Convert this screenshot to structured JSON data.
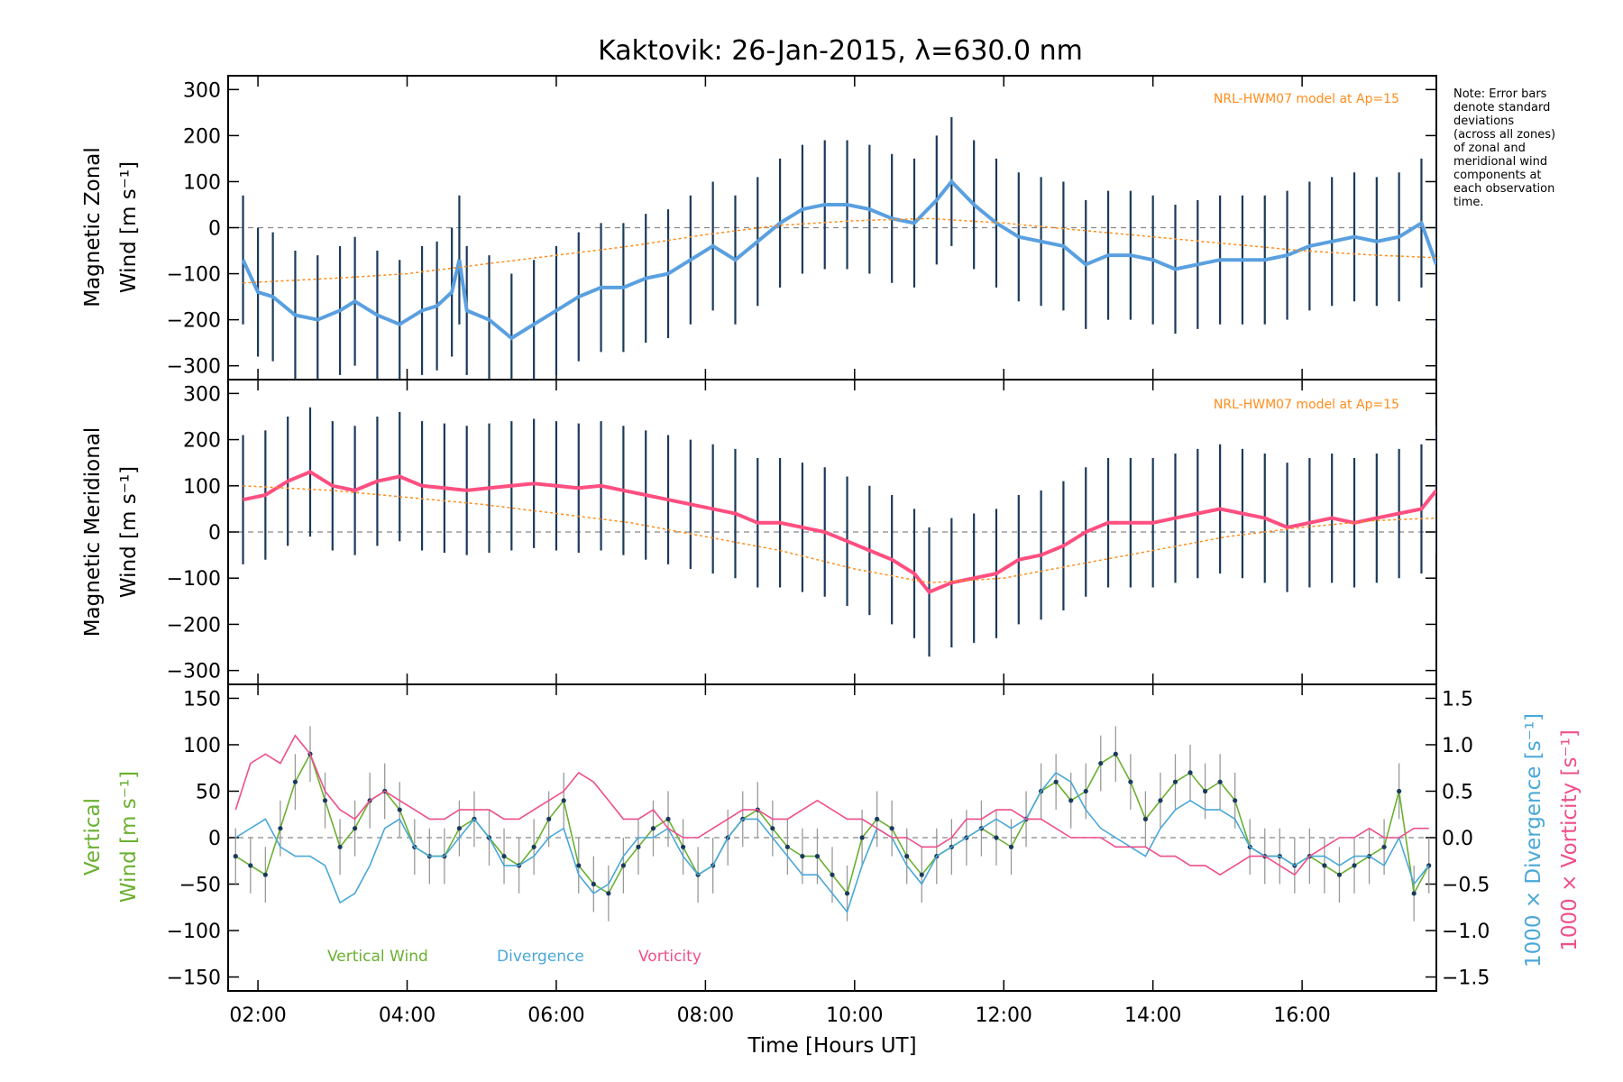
{
  "chart_data": [
    {
      "type": "line",
      "title": "Kaktovik: 26-Jan-2015, λ=630.0 nm",
      "ylabel_line1": "Magnetic Zonal",
      "ylabel_line2": "Wind [m s⁻¹]",
      "model_label": "NRL-HWM07 model at Ap=15",
      "note": [
        "Note: Error bars",
        "denote standard",
        "deviations",
        "(across all zones)",
        "of zonal and",
        "meridional wind",
        "components at",
        "each observation",
        "time."
      ],
      "xlim": [
        1.6,
        17.8
      ],
      "ylim": [
        -330,
        330
      ],
      "yticks": [
        "300",
        "200",
        "100",
        "0",
        "−100",
        "−200",
        "−300"
      ],
      "series": [
        {
          "color": "#5aa0e0",
          "x": [
            1.8,
            2.0,
            2.2,
            2.5,
            2.8,
            3.1,
            3.3,
            3.6,
            3.9,
            4.2,
            4.4,
            4.6,
            4.7,
            4.8,
            5.1,
            5.4,
            5.7,
            6.0,
            6.3,
            6.6,
            6.9,
            7.2,
            7.5,
            7.8,
            8.1,
            8.4,
            8.7,
            9.0,
            9.3,
            9.6,
            9.9,
            10.2,
            10.5,
            10.8,
            11.1,
            11.3,
            11.6,
            11.9,
            12.2,
            12.5,
            12.8,
            13.1,
            13.4,
            13.7,
            14.0,
            14.3,
            14.6,
            14.9,
            15.2,
            15.5,
            15.8,
            16.1,
            16.4,
            16.7,
            17.0,
            17.3,
            17.6,
            17.8
          ],
          "y": [
            -70,
            -140,
            -150,
            -190,
            -200,
            -180,
            -160,
            -190,
            -210,
            -180,
            -170,
            -140,
            -70,
            -180,
            -200,
            -240,
            -210,
            -180,
            -150,
            -130,
            -130,
            -110,
            -100,
            -70,
            -40,
            -70,
            -30,
            10,
            40,
            50,
            50,
            40,
            20,
            10,
            60,
            100,
            50,
            10,
            -20,
            -30,
            -40,
            -80,
            -60,
            -60,
            -70,
            -90,
            -80,
            -70,
            -70,
            -70,
            -60,
            -40,
            -30,
            -20,
            -30,
            -20,
            10,
            -80
          ]
        },
        {
          "color": "#ff8c1a",
          "x": [
            1.8,
            3.0,
            4.0,
            5.0,
            6.0,
            7.0,
            8.0,
            9.0,
            10.0,
            11.0,
            12.0,
            13.0,
            14.0,
            15.0,
            16.0,
            17.0,
            17.8
          ],
          "y": [
            -120,
            -110,
            -100,
            -80,
            -60,
            -40,
            -15,
            5,
            15,
            20,
            10,
            -5,
            -20,
            -35,
            -50,
            -60,
            -65
          ]
        }
      ]
    },
    {
      "type": "line",
      "ylabel_line1": "Magnetic Meridional",
      "ylabel_line2": "Wind [m s⁻¹]",
      "model_label": "NRL-HWM07 model at Ap=15",
      "xlim": [
        1.6,
        17.8
      ],
      "ylim": [
        -330,
        330
      ],
      "yticks": [
        "300",
        "200",
        "100",
        "0",
        "−100",
        "−200",
        "−300"
      ],
      "series": [
        {
          "color": "#ff4f80",
          "x": [
            1.8,
            2.1,
            2.4,
            2.7,
            3.0,
            3.3,
            3.6,
            3.9,
            4.2,
            4.5,
            4.8,
            5.1,
            5.4,
            5.7,
            6.0,
            6.3,
            6.6,
            6.9,
            7.2,
            7.5,
            7.8,
            8.1,
            8.4,
            8.7,
            9.0,
            9.3,
            9.6,
            9.9,
            10.2,
            10.5,
            10.8,
            11.0,
            11.3,
            11.6,
            11.9,
            12.2,
            12.5,
            12.8,
            13.1,
            13.4,
            13.7,
            14.0,
            14.3,
            14.6,
            14.9,
            15.2,
            15.5,
            15.8,
            16.1,
            16.4,
            16.7,
            17.0,
            17.3,
            17.6,
            17.8
          ],
          "y": [
            70,
            80,
            110,
            130,
            100,
            90,
            110,
            120,
            100,
            95,
            90,
            95,
            100,
            105,
            100,
            95,
            100,
            90,
            80,
            70,
            60,
            50,
            40,
            20,
            20,
            10,
            0,
            -20,
            -40,
            -60,
            -90,
            -130,
            -110,
            -100,
            -90,
            -60,
            -50,
            -30,
            0,
            20,
            20,
            20,
            30,
            40,
            50,
            40,
            30,
            10,
            20,
            30,
            20,
            30,
            40,
            50,
            90
          ]
        },
        {
          "color": "#ff8c1a",
          "x": [
            1.8,
            3.0,
            4.0,
            5.0,
            6.0,
            7.0,
            8.0,
            9.0,
            10.0,
            11.0,
            12.0,
            13.0,
            14.0,
            15.0,
            16.0,
            17.0,
            17.8
          ],
          "y": [
            100,
            90,
            75,
            60,
            40,
            20,
            -10,
            -40,
            -80,
            -110,
            -100,
            -70,
            -40,
            -10,
            10,
            25,
            30
          ]
        }
      ]
    },
    {
      "type": "line",
      "ylabel_line1": "Vertical",
      "ylabel_line2": "Wind [m s⁻¹]",
      "y2label": "1000 × Divergence [s⁻¹]",
      "y3label": "1000 × Vorticity [s⁻¹]",
      "xlabel": "Time [Hours UT]",
      "xlim": [
        1.6,
        17.8
      ],
      "ylim": [
        -165,
        165
      ],
      "y2lim": [
        -1.65,
        1.65
      ],
      "xticks": [
        "02:00",
        "04:00",
        "06:00",
        "08:00",
        "10:00",
        "12:00",
        "14:00",
        "16:00"
      ],
      "yticks": [
        "150",
        "100",
        "50",
        "0",
        "−50",
        "−100",
        "−150"
      ],
      "y2ticks": [
        "1.5",
        "1.0",
        "0.5",
        "0.0",
        "−0.5",
        "−1.0",
        "−1.5"
      ],
      "legend": [
        "Vertical Wind",
        "Divergence",
        "Vorticity"
      ],
      "series": [
        {
          "name": "Vertical Wind",
          "color": "#6ab030",
          "x": [
            1.7,
            1.9,
            2.1,
            2.3,
            2.5,
            2.7,
            2.9,
            3.1,
            3.3,
            3.5,
            3.7,
            3.9,
            4.1,
            4.3,
            4.5,
            4.7,
            4.9,
            5.1,
            5.3,
            5.5,
            5.7,
            5.9,
            6.1,
            6.3,
            6.5,
            6.7,
            6.9,
            7.1,
            7.3,
            7.5,
            7.7,
            7.9,
            8.1,
            8.3,
            8.5,
            8.7,
            8.9,
            9.1,
            9.3,
            9.5,
            9.7,
            9.9,
            10.1,
            10.3,
            10.5,
            10.7,
            10.9,
            11.1,
            11.3,
            11.5,
            11.7,
            11.9,
            12.1,
            12.3,
            12.5,
            12.7,
            12.9,
            13.1,
            13.3,
            13.5,
            13.7,
            13.9,
            14.1,
            14.3,
            14.5,
            14.7,
            14.9,
            15.1,
            15.3,
            15.5,
            15.7,
            15.9,
            16.1,
            16.3,
            16.5,
            16.7,
            16.9,
            17.1,
            17.3,
            17.5,
            17.7
          ],
          "y": [
            -20,
            -30,
            -40,
            10,
            60,
            90,
            40,
            -10,
            10,
            40,
            50,
            30,
            -10,
            -20,
            -20,
            10,
            20,
            0,
            -20,
            -30,
            -10,
            20,
            40,
            -30,
            -50,
            -60,
            -30,
            -10,
            10,
            20,
            -10,
            -40,
            -30,
            0,
            20,
            30,
            10,
            -10,
            -20,
            -20,
            -40,
            -60,
            0,
            20,
            10,
            -20,
            -40,
            -20,
            -10,
            0,
            10,
            0,
            -10,
            20,
            50,
            60,
            40,
            50,
            80,
            90,
            60,
            20,
            40,
            60,
            70,
            50,
            60,
            40,
            -10,
            -20,
            -20,
            -30,
            -20,
            -30,
            -40,
            -30,
            -20,
            -10,
            50,
            -60,
            -30
          ]
        },
        {
          "name": "Divergence",
          "color": "#4aa8d8",
          "x": [
            1.7,
            1.9,
            2.1,
            2.3,
            2.5,
            2.7,
            2.9,
            3.1,
            3.3,
            3.5,
            3.7,
            3.9,
            4.1,
            4.3,
            4.5,
            4.7,
            4.9,
            5.1,
            5.3,
            5.5,
            5.7,
            5.9,
            6.1,
            6.3,
            6.5,
            6.7,
            6.9,
            7.1,
            7.3,
            7.5,
            7.7,
            7.9,
            8.1,
            8.3,
            8.5,
            8.7,
            8.9,
            9.1,
            9.3,
            9.5,
            9.7,
            9.9,
            10.1,
            10.3,
            10.5,
            10.7,
            10.9,
            11.1,
            11.3,
            11.5,
            11.7,
            11.9,
            12.1,
            12.3,
            12.5,
            12.7,
            12.9,
            13.1,
            13.3,
            13.5,
            13.7,
            13.9,
            14.1,
            14.3,
            14.5,
            14.7,
            14.9,
            15.1,
            15.3,
            15.5,
            15.7,
            15.9,
            16.1,
            16.3,
            16.5,
            16.7,
            16.9,
            17.1,
            17.3,
            17.5,
            17.7
          ],
          "y": [
            0.0,
            0.1,
            0.2,
            -0.1,
            -0.2,
            -0.2,
            -0.3,
            -0.7,
            -0.6,
            -0.3,
            0.1,
            0.2,
            -0.1,
            -0.2,
            -0.2,
            0.0,
            0.2,
            0.0,
            -0.3,
            -0.3,
            -0.2,
            0.0,
            0.1,
            -0.4,
            -0.6,
            -0.5,
            -0.2,
            0.0,
            0.0,
            0.1,
            -0.2,
            -0.4,
            -0.3,
            0.0,
            0.2,
            0.2,
            0.0,
            -0.2,
            -0.4,
            -0.4,
            -0.6,
            -0.8,
            -0.3,
            0.1,
            0.0,
            -0.3,
            -0.5,
            -0.2,
            -0.1,
            0.0,
            0.1,
            0.2,
            0.1,
            0.2,
            0.5,
            0.7,
            0.6,
            0.3,
            0.1,
            0.0,
            -0.1,
            -0.2,
            0.1,
            0.3,
            0.4,
            0.3,
            0.3,
            0.2,
            -0.1,
            -0.2,
            -0.2,
            -0.3,
            -0.2,
            -0.2,
            -0.3,
            -0.2,
            -0.2,
            -0.3,
            0.0,
            -0.5,
            -0.3
          ]
        },
        {
          "name": "Vorticity",
          "color": "#ee4f8a",
          "x": [
            1.7,
            1.9,
            2.1,
            2.3,
            2.5,
            2.7,
            2.9,
            3.1,
            3.3,
            3.5,
            3.7,
            3.9,
            4.1,
            4.3,
            4.5,
            4.7,
            4.9,
            5.1,
            5.3,
            5.5,
            5.7,
            5.9,
            6.1,
            6.3,
            6.5,
            6.7,
            6.9,
            7.1,
            7.3,
            7.5,
            7.7,
            7.9,
            8.1,
            8.3,
            8.5,
            8.7,
            8.9,
            9.1,
            9.3,
            9.5,
            9.7,
            9.9,
            10.1,
            10.3,
            10.5,
            10.7,
            10.9,
            11.1,
            11.3,
            11.5,
            11.7,
            11.9,
            12.1,
            12.3,
            12.5,
            12.7,
            12.9,
            13.1,
            13.3,
            13.5,
            13.7,
            13.9,
            14.1,
            14.3,
            14.5,
            14.7,
            14.9,
            15.1,
            15.3,
            15.5,
            15.7,
            15.9,
            16.1,
            16.3,
            16.5,
            16.7,
            16.9,
            17.1,
            17.3,
            17.5,
            17.7
          ],
          "y": [
            0.3,
            0.8,
            0.9,
            0.8,
            1.1,
            0.9,
            0.5,
            0.3,
            0.2,
            0.4,
            0.5,
            0.4,
            0.3,
            0.2,
            0.2,
            0.3,
            0.3,
            0.3,
            0.2,
            0.2,
            0.3,
            0.4,
            0.5,
            0.7,
            0.6,
            0.4,
            0.2,
            0.2,
            0.3,
            0.1,
            0.0,
            0.0,
            0.1,
            0.2,
            0.3,
            0.3,
            0.2,
            0.2,
            0.3,
            0.4,
            0.3,
            0.2,
            0.2,
            0.1,
            0.0,
            0.0,
            -0.1,
            -0.1,
            0.0,
            0.2,
            0.2,
            0.3,
            0.3,
            0.2,
            0.2,
            0.1,
            0.0,
            0.0,
            0.0,
            -0.1,
            -0.1,
            -0.1,
            -0.2,
            -0.2,
            -0.3,
            -0.3,
            -0.4,
            -0.3,
            -0.2,
            -0.2,
            -0.3,
            -0.4,
            -0.2,
            -0.1,
            0.0,
            0.0,
            0.1,
            0.0,
            0.0,
            0.1,
            0.1
          ]
        }
      ]
    }
  ]
}
